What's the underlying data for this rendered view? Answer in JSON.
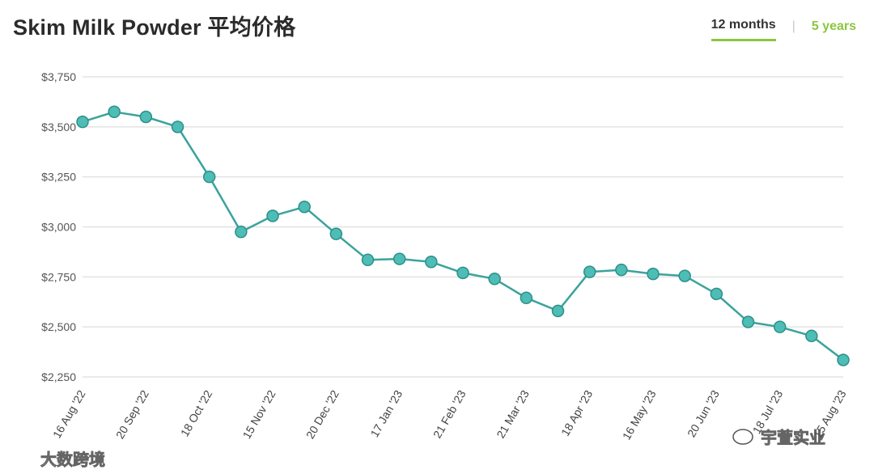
{
  "title": "Skim Milk Powder 平均价格",
  "tabs": [
    {
      "label": "12 months",
      "active": true
    },
    {
      "label": "5 years",
      "active": false
    }
  ],
  "watermarks": {
    "left": "大数跨境",
    "right": "宇萱实业"
  },
  "colors": {
    "line": "#3aa39c",
    "marker_fill": "#4dbdb6",
    "accent": "#8cc63f",
    "grid": "#e3e3e3"
  },
  "chart_data": {
    "type": "line",
    "title": "Skim Milk Powder 平均价格",
    "xlabel": "",
    "ylabel": "",
    "ylim": [
      2250,
      3750
    ],
    "yticks": [
      2250,
      2500,
      2750,
      3000,
      3250,
      3500,
      3750
    ],
    "ytick_labels": [
      "$2,250",
      "$2,500",
      "$2,750",
      "$3,000",
      "$3,250",
      "$3,500",
      "$3,750"
    ],
    "x_tick_labels": [
      "16 Aug '22",
      "20 Sep '22",
      "18 Oct '22",
      "15 Nov '22",
      "20 Dec '22",
      "17 Jan '23",
      "21 Feb '23",
      "21 Mar '23",
      "18 Apr '23",
      "16 May '23",
      "20 Jun '23",
      "18 Jul '23",
      "15 Aug '23"
    ],
    "x_tick_positions": [
      0,
      2,
      4,
      6,
      8,
      10,
      12,
      14,
      16,
      18,
      20,
      22,
      24
    ],
    "grid": true,
    "legend": "none",
    "series": [
      {
        "values": [
          3525,
          3575,
          3550,
          3500,
          3250,
          2975,
          3055,
          3100,
          2965,
          2835,
          2840,
          2825,
          2770,
          2740,
          2645,
          2580,
          2775,
          2785,
          2765,
          2755,
          2665,
          2525,
          2500,
          2455,
          2335
        ]
      }
    ]
  }
}
